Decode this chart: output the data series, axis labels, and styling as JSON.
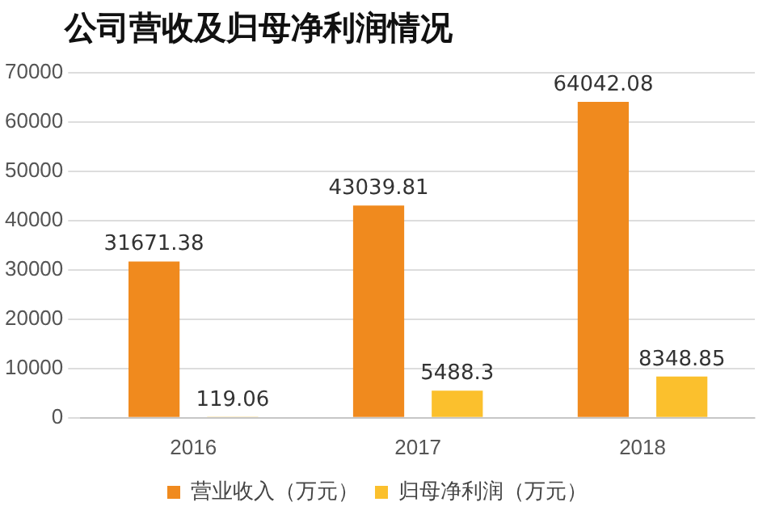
{
  "chart_data": {
    "type": "bar",
    "title": "公司营收及归母净利润情况",
    "categories": [
      "2016",
      "2017",
      "2018"
    ],
    "series": [
      {
        "name": "营业收入（万元）",
        "color": "#f08a1e",
        "values": [
          31671.38,
          43039.81,
          64042.08
        ]
      },
      {
        "name": "归母净利润（万元）",
        "color": "#fbc02d",
        "values": [
          119.06,
          5488.3,
          8348.85
        ]
      }
    ],
    "ylim": [
      0,
      70000
    ],
    "yticks": [
      0,
      10000,
      20000,
      30000,
      40000,
      50000,
      60000,
      70000
    ],
    "grid": "y",
    "legend": "bottom",
    "data_labels": true
  }
}
